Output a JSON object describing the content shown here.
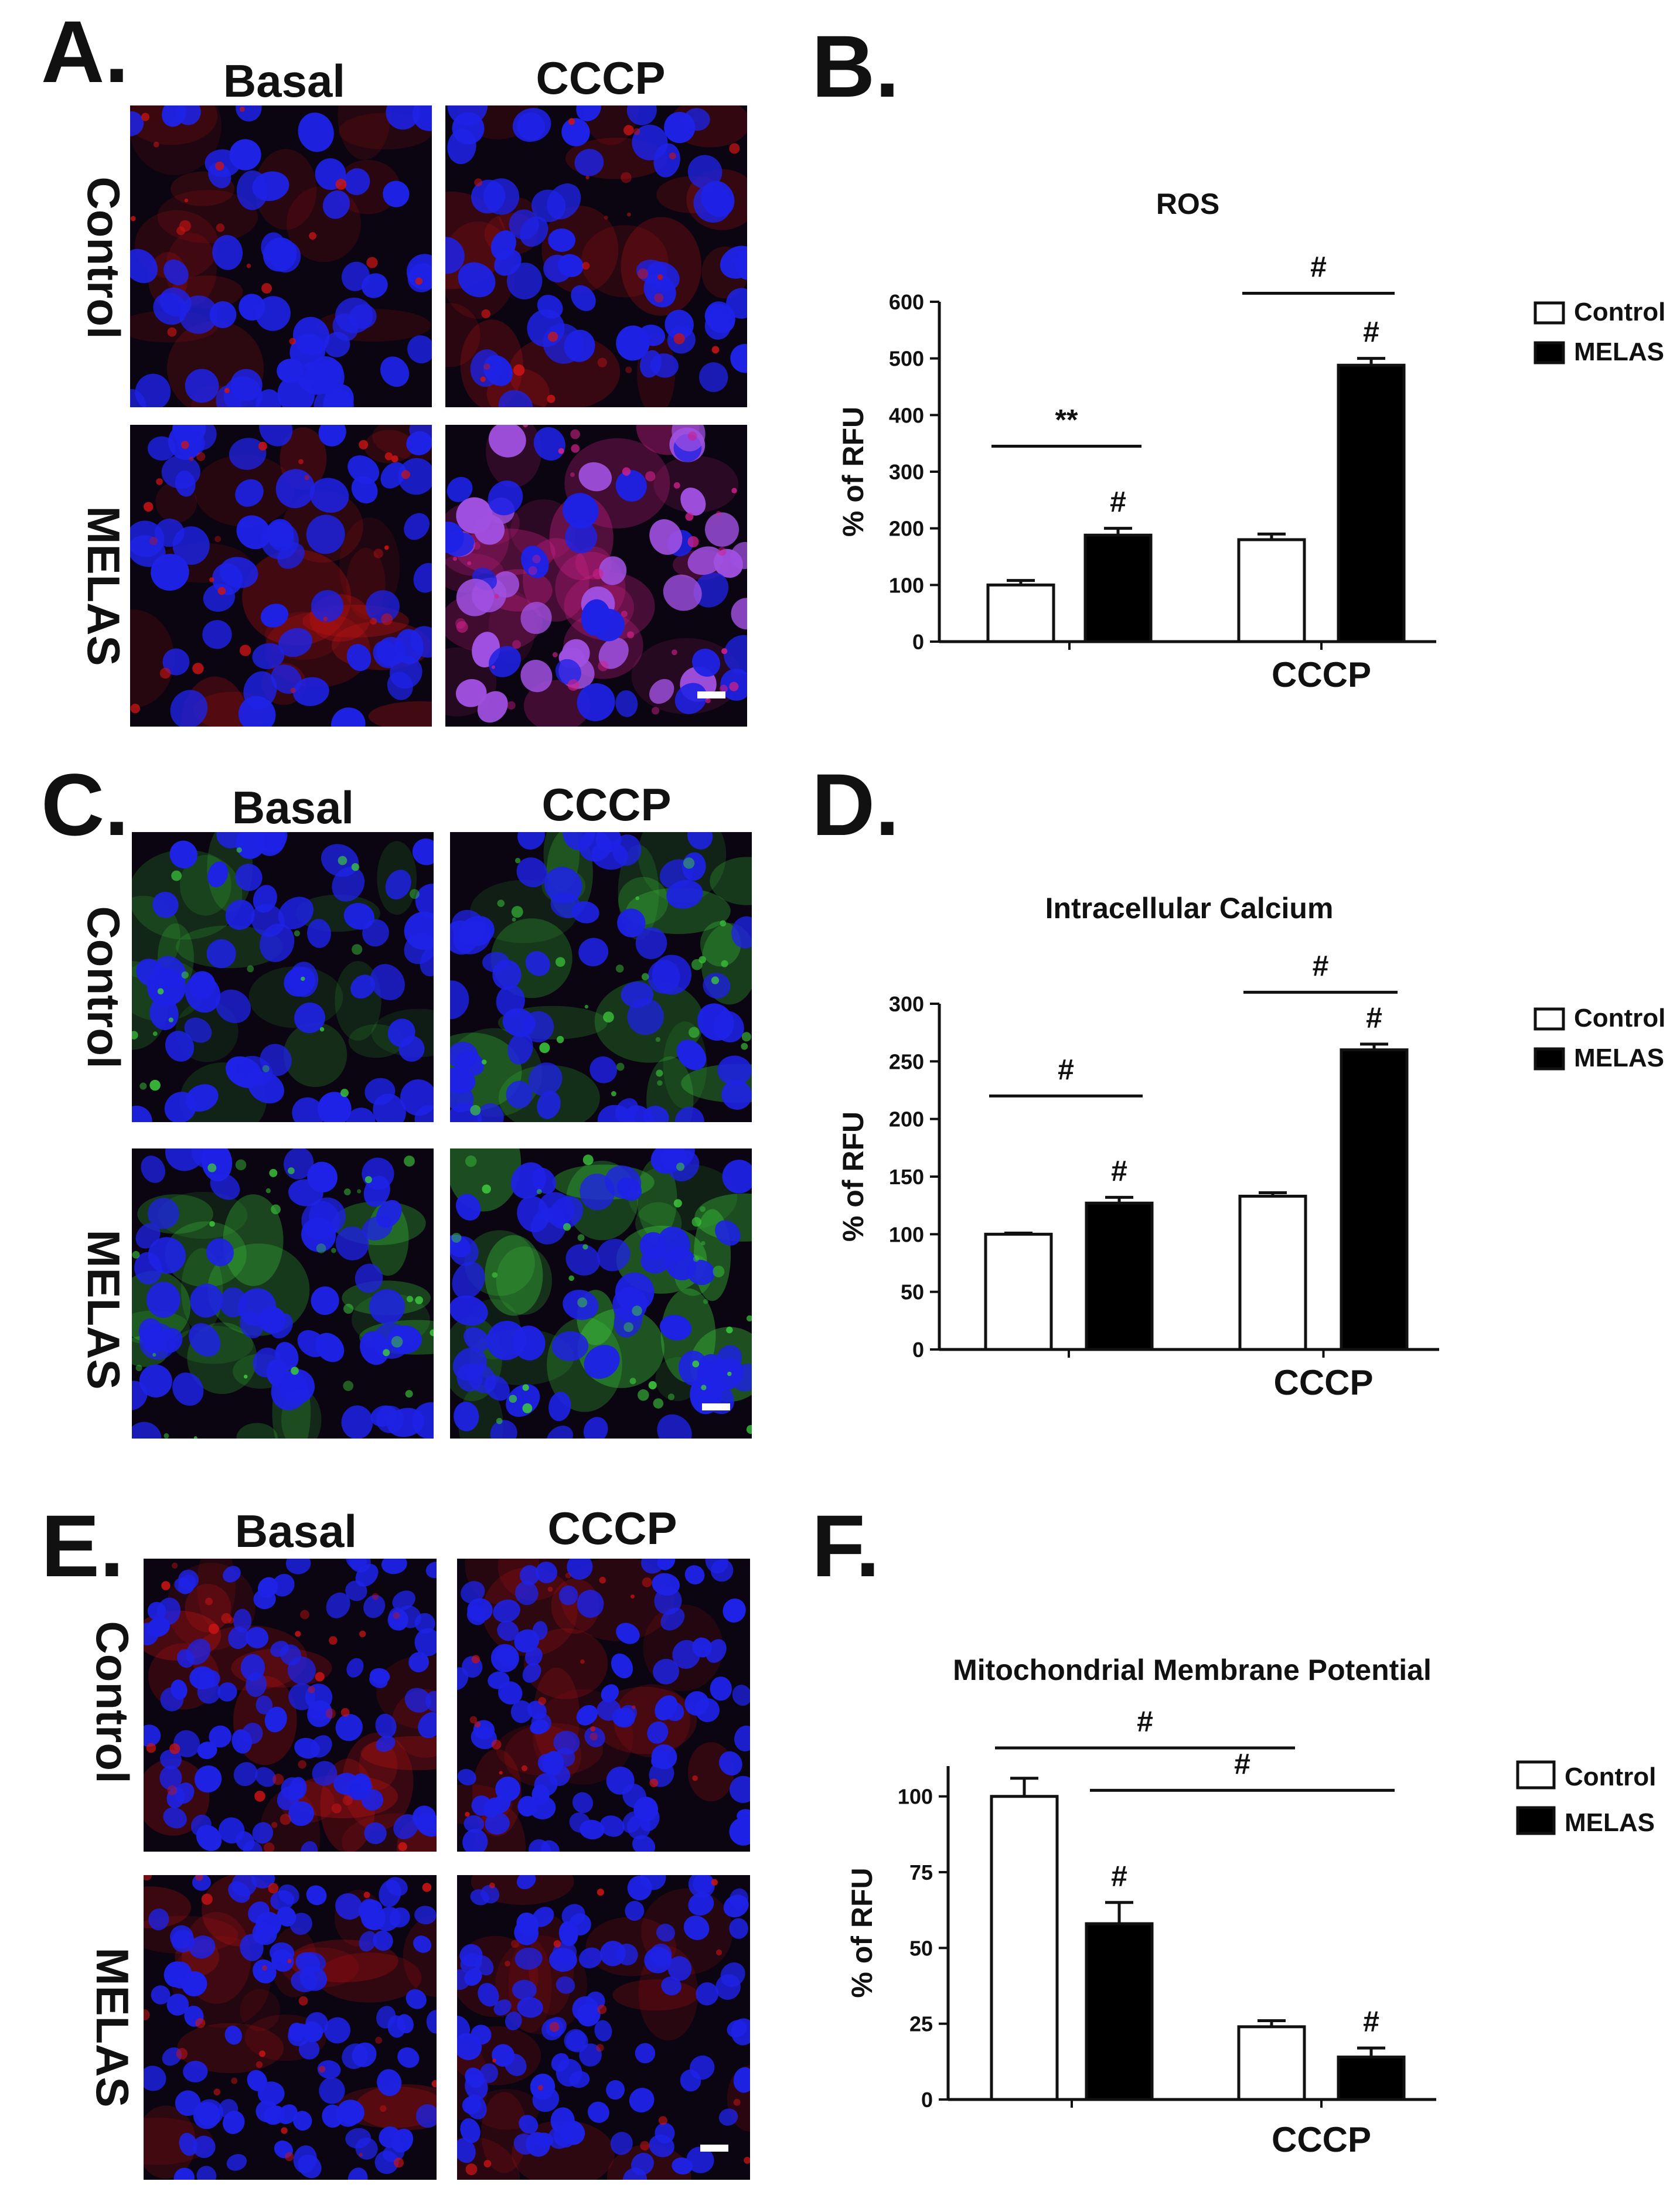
{
  "panels": {
    "A": {
      "letter": "A.",
      "col_labels": [
        "Basal",
        "CCCP"
      ],
      "row_labels": [
        "Control",
        "MELAS"
      ],
      "stain": "red-blue"
    },
    "B": {
      "letter": "B."
    },
    "C": {
      "letter": "C.",
      "col_labels": [
        "Basal",
        "CCCP"
      ],
      "row_labels": [
        "Control",
        "MELAS"
      ],
      "stain": "green-blue"
    },
    "D": {
      "letter": "D."
    },
    "E": {
      "letter": "E.",
      "col_labels": [
        "Basal",
        "CCCP"
      ],
      "row_labels": [
        "Control",
        "MELAS"
      ],
      "stain": "red-blue-dense"
    },
    "F": {
      "letter": "F."
    }
  },
  "colors": {
    "control_fill": "#ffffff",
    "melas_fill": "#000000",
    "nuclei": "#1e22e6",
    "red_stain": "#c81414",
    "green_stain": "#3cc83c",
    "background_dark": "#0a0510"
  },
  "chart_data": [
    {
      "id": "B",
      "type": "bar",
      "title": "ROS",
      "ylabel": "% of RFU",
      "xlabel": "",
      "categories": [
        "",
        "CCCP"
      ],
      "ylim": [
        0,
        600
      ],
      "yticks": [
        "0",
        "100",
        "200",
        "300",
        "400",
        "500",
        "600"
      ],
      "series": [
        {
          "name": "Control",
          "values": [
            100,
            180
          ],
          "errors": [
            8,
            10
          ]
        },
        {
          "name": "MELAS",
          "values": [
            188,
            488
          ],
          "errors": [
            12,
            12
          ]
        }
      ],
      "bar_annotations": [
        {
          "series": 1,
          "category": 0,
          "text": "#"
        },
        {
          "series": 1,
          "category": 1,
          "text": "#"
        }
      ],
      "brackets": [
        {
          "from": [
            0,
            0
          ],
          "to": [
            0,
            1
          ],
          "level": 345,
          "text": "**"
        },
        {
          "from": [
            1,
            0
          ],
          "to": [
            1,
            1
          ],
          "level": 615,
          "text": "#"
        }
      ],
      "legend": "right"
    },
    {
      "id": "D",
      "type": "bar",
      "title": "Intracellular Calcium",
      "ylabel": "% of RFU",
      "xlabel": "",
      "categories": [
        "",
        "CCCP"
      ],
      "ylim": [
        0,
        300
      ],
      "yticks": [
        "0",
        "50",
        "100",
        "150",
        "200",
        "250",
        "300"
      ],
      "series": [
        {
          "name": "Control",
          "values": [
            100,
            133
          ],
          "errors": [
            1,
            3
          ]
        },
        {
          "name": "MELAS",
          "values": [
            127,
            260
          ],
          "errors": [
            5,
            5
          ]
        }
      ],
      "bar_annotations": [
        {
          "series": 1,
          "category": 0,
          "text": "#"
        },
        {
          "series": 1,
          "category": 1,
          "text": "#"
        }
      ],
      "brackets": [
        {
          "from": [
            0,
            0
          ],
          "to": [
            0,
            1
          ],
          "level": 220,
          "text": "#"
        },
        {
          "from": [
            1,
            0
          ],
          "to": [
            1,
            1
          ],
          "level": 310,
          "text": "#"
        }
      ],
      "legend": "right"
    },
    {
      "id": "F",
      "type": "bar",
      "title": "Mitochondrial Membrane Potential",
      "ylabel": "% of RFU",
      "xlabel": "",
      "categories": [
        "",
        "CCCP"
      ],
      "ylim": [
        0,
        110
      ],
      "yticks": [
        "0",
        "25",
        "50",
        "75",
        "100"
      ],
      "series": [
        {
          "name": "Control",
          "values": [
            100,
            24
          ],
          "errors": [
            6,
            2
          ]
        },
        {
          "name": "MELAS",
          "values": [
            58,
            14
          ],
          "errors": [
            7,
            3
          ]
        }
      ],
      "bar_annotations": [
        {
          "series": 1,
          "category": 0,
          "text": "#"
        },
        {
          "series": 1,
          "category": 1,
          "text": "#"
        }
      ],
      "brackets": [
        {
          "from": [
            0,
            0
          ],
          "to": [
            1,
            0
          ],
          "level": 116,
          "text": "#"
        },
        {
          "from": [
            0,
            1
          ],
          "to": [
            1,
            1
          ],
          "level": 102,
          "text": "#"
        }
      ],
      "legend": "right"
    }
  ]
}
